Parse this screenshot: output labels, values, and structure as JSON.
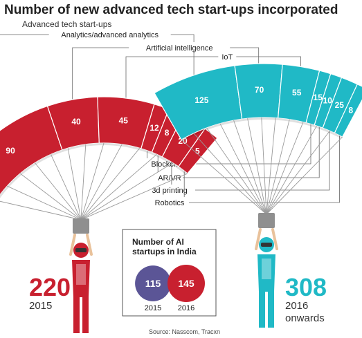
{
  "chart_data": {
    "type": "bar",
    "title": "Number of new advanced tech start-ups incorporated",
    "subtitle": "Advanced tech start-ups",
    "categories": [
      "Analytics/advanced analytics",
      "Artificial intelligence",
      "IoT",
      "Blockchain",
      "AR/VR",
      "3d printing",
      "Robotics"
    ],
    "series": [
      {
        "name": "2015",
        "values": [
          90,
          40,
          45,
          12,
          8,
          20,
          5
        ],
        "total": 220,
        "period": "2015",
        "color": "#c8202f"
      },
      {
        "name": "2016 onwards",
        "values": [
          125,
          70,
          55,
          15,
          10,
          25,
          8
        ],
        "total": 308,
        "period_lines": [
          "2016",
          "onwards"
        ],
        "color": "#20b9c6"
      }
    ],
    "inset": {
      "title_lines": [
        "Number of AI",
        "startups in India"
      ],
      "values": [
        115,
        145
      ],
      "labels": [
        "2015",
        "2016"
      ],
      "colors": [
        "#5b5596",
        "#c8202f"
      ]
    },
    "source": "Source: Nasscom, Tracxn"
  }
}
